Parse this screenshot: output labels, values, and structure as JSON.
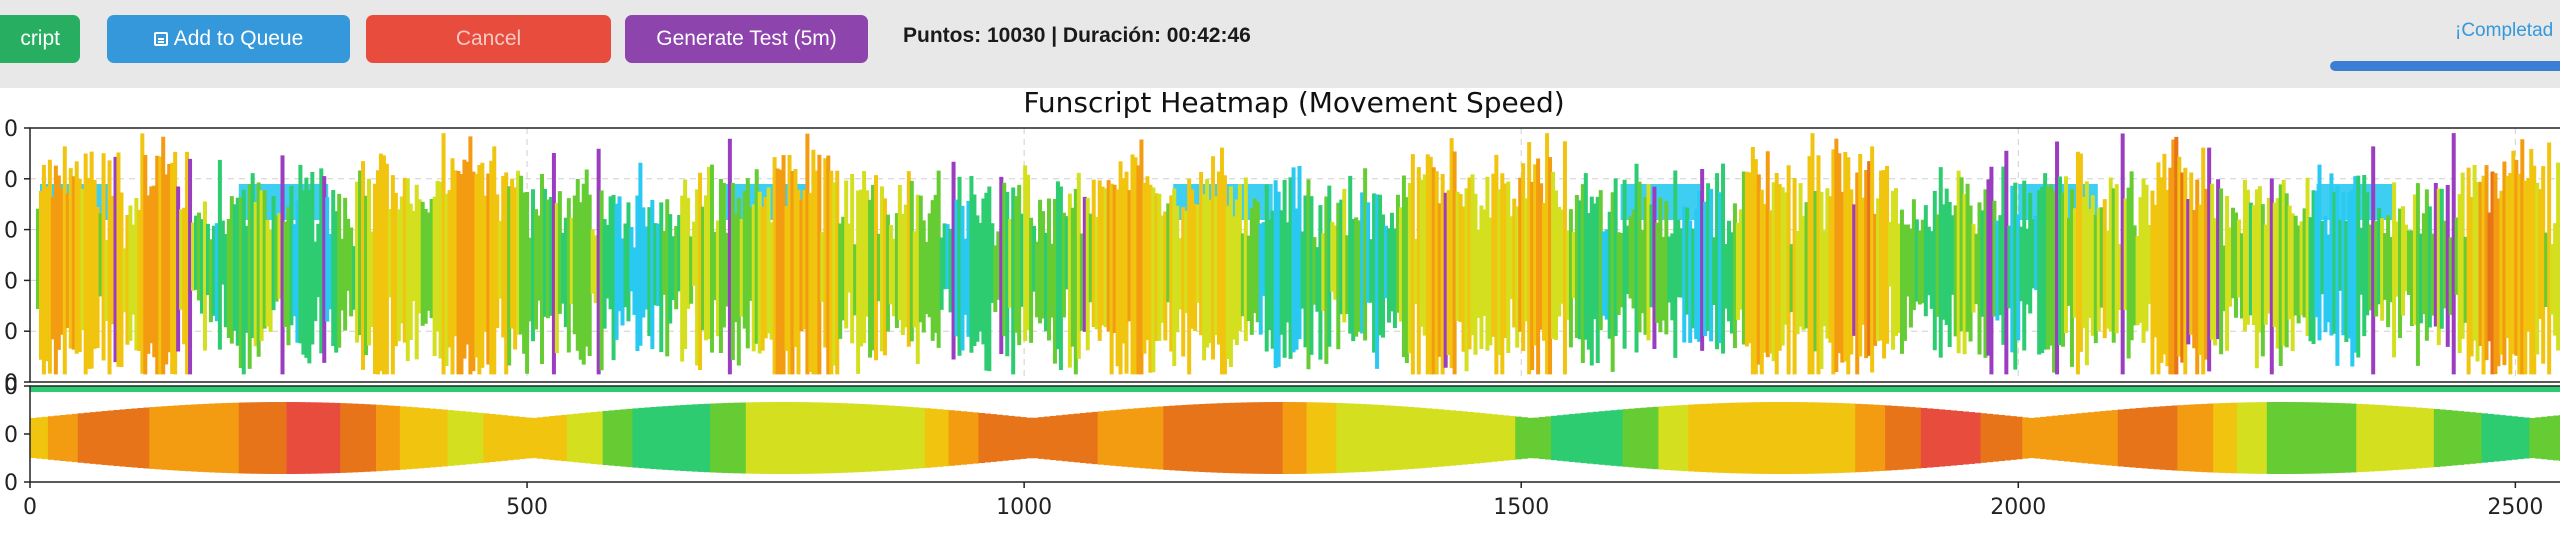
{
  "toolbar": {
    "export_label": "cript",
    "queue_label": "Add to Queue",
    "cancel_label": "Cancel",
    "test_label": "Generate Test (5m)",
    "stats": "Puntos: 10030 | Duración: 00:42:46",
    "status": "¡Completad",
    "progress": 1.0,
    "colors": {
      "export": "#27ae60",
      "queue": "#3498db",
      "cancel": "#e74c3c",
      "test": "#8e44ad",
      "progress": "#3b7fd4"
    },
    "icons": {
      "queue": "queue-icon"
    }
  },
  "chart_data": {
    "type": "heatmap",
    "title": "Funscript Heatmap (Movement Speed)",
    "xlabel": "",
    "x_ticks": [
      0,
      500,
      1000,
      1500,
      2000,
      2500
    ],
    "xlim": [
      0,
      2560
    ],
    "top_panel": {
      "y_tick_labels": [
        "0",
        "0",
        "0",
        "0",
        "0",
        "0"
      ],
      "ylim": [
        0,
        100
      ],
      "grid": true
    },
    "bottom_panel": {
      "y_tick_labels": [
        "0",
        "0",
        "0"
      ],
      "ylim": [
        0,
        100
      ]
    },
    "color_scale": [
      "#29c9f1",
      "#2ecc71",
      "#66cc33",
      "#d4e01f",
      "#f1c40f",
      "#f39c12",
      "#e8741a",
      "#e74c3c",
      "#9b3dc0"
    ]
  }
}
